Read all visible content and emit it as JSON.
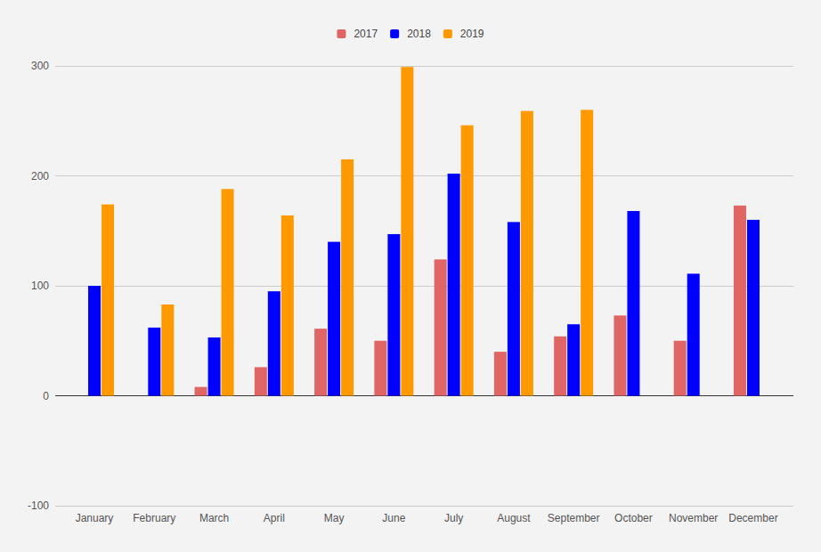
{
  "chart_data": {
    "type": "bar",
    "categories": [
      "January",
      "February",
      "March",
      "April",
      "May",
      "June",
      "July",
      "August",
      "September",
      "October",
      "November",
      "December"
    ],
    "series": [
      {
        "name": "2017",
        "color": "#e06666",
        "values": [
          null,
          null,
          8,
          26,
          61,
          50,
          124,
          40,
          54,
          73,
          50,
          173
        ]
      },
      {
        "name": "2018",
        "color": "#0000ff",
        "values": [
          100,
          62,
          53,
          95,
          140,
          147,
          202,
          158,
          65,
          168,
          111,
          160
        ]
      },
      {
        "name": "2019",
        "color": "#ff9900",
        "values": [
          174,
          83,
          188,
          164,
          215,
          299,
          246,
          259,
          260,
          null,
          null,
          null
        ]
      }
    ],
    "ylim": [
      -100,
      300
    ],
    "yticks": [
      -100,
      0,
      100,
      200,
      300
    ],
    "grid": true,
    "legend": "top"
  }
}
